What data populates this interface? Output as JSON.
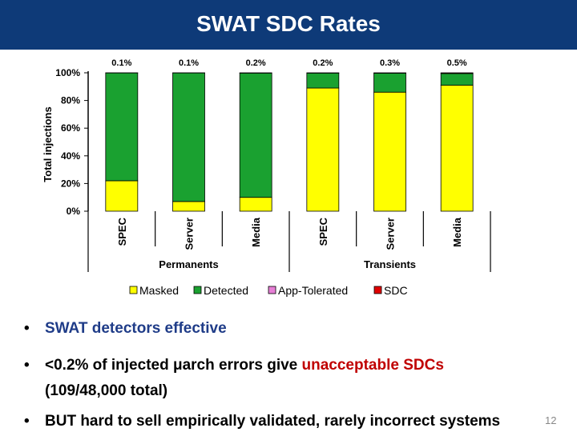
{
  "slide": {
    "title": "SWAT SDC Rates",
    "bullets": [
      {
        "parts": [
          {
            "text": "SWAT detectors effective",
            "style": "blue"
          }
        ]
      },
      {
        "parts": [
          {
            "text": "<0.2% of injected μarch errors give ",
            "style": "plain"
          },
          {
            "text": "unacceptable SDCs",
            "style": "red"
          }
        ],
        "line2": "(109/48,000 total)"
      },
      {
        "parts": [
          {
            "text": "BUT hard to sell empirically validated, rarely incorrect systems",
            "style": "plain"
          }
        ]
      }
    ],
    "slide_number": "12"
  },
  "chart_data": {
    "type": "bar",
    "stacked": true,
    "ylabel": "Total injections",
    "ylim": [
      0,
      100
    ],
    "yticks": [
      "0%",
      "20%",
      "40%",
      "60%",
      "80%",
      "100%"
    ],
    "categories": [
      "SPEC",
      "Server",
      "Media",
      "SPEC",
      "Server",
      "Media"
    ],
    "groups": [
      {
        "label": "Permanents",
        "categories": [
          0,
          1,
          2
        ]
      },
      {
        "label": "Transients",
        "categories": [
          3,
          4,
          5
        ]
      }
    ],
    "top_labels": [
      "0.1%",
      "0.1%",
      "0.2%",
      "0.2%",
      "0.3%",
      "0.5%"
    ],
    "series": [
      {
        "name": "Masked",
        "color": "#ffff00",
        "values": [
          22,
          7,
          10,
          89,
          86,
          91
        ]
      },
      {
        "name": "Detected",
        "color": "#1aa130",
        "values": [
          77.9,
          92.9,
          89.8,
          10.8,
          13.7,
          8.5
        ]
      },
      {
        "name": "App-Tolerated",
        "color": "#e77fd6",
        "values": [
          0,
          0,
          0,
          0,
          0,
          0
        ]
      },
      {
        "name": "SDC",
        "color": "#e00000",
        "values": [
          0.1,
          0.1,
          0.2,
          0.2,
          0.3,
          0.5
        ]
      }
    ],
    "grid": false,
    "legend": "bottom"
  }
}
